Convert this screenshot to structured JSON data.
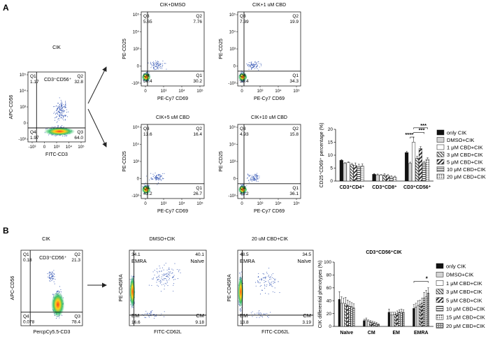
{
  "panels": [
    {
      "letter": "A"
    },
    {
      "letter": "B"
    }
  ],
  "flow_plots": [
    {
      "id": "a_cik",
      "title": "CIK",
      "ylabel": "APC-CD56",
      "xlabel": "FITC-CD3",
      "gate": "CD3⁺CD56⁺",
      "yticks": [
        "10⁵",
        "10⁴",
        "10³",
        "0",
        "-10³"
      ],
      "xticks": [
        "-10³",
        "0",
        "10³",
        "10⁴",
        "10⁵"
      ],
      "quads": {
        "Q1": {
          "name": "Q1",
          "val": "1.17"
        },
        "Q2": {
          "name": "Q2",
          "val": "32.8"
        },
        "Q3": {
          "name": "Q3",
          "val": "64.0"
        },
        "Q4": {
          "name": "Q4",
          "val": "1.97"
        }
      }
    },
    {
      "id": "a_dmso",
      "title": "CIK+DMSO",
      "ylabel": "PE-CD25",
      "xlabel": "PE-Cy7 CD69",
      "yticks": [
        "10⁵",
        "10⁴",
        "10³",
        "0",
        "-10³"
      ],
      "xticks": [
        "0",
        "10³",
        "10⁴",
        "10⁵"
      ],
      "quads": {
        "Q1": {
          "name": "Q3",
          "val": "5.65"
        },
        "Q2": {
          "name": "Q2",
          "val": "7.76"
        },
        "Q3": {
          "name": "Q1",
          "val": "30.2"
        },
        "Q4": {
          "name": "Q4",
          "val": "56.4"
        }
      }
    },
    {
      "id": "a_1um",
      "title": "CIK+1 uM CBD",
      "ylabel": "PE-CD25",
      "xlabel": "PE-Cy7 CD69",
      "yticks": [
        "10⁵",
        "10⁴",
        "10³",
        "0",
        "-10³"
      ],
      "xticks": [
        "0",
        "10³",
        "10⁴",
        "10⁵"
      ],
      "quads": {
        "Q1": {
          "name": "Q3",
          "val": "7.39"
        },
        "Q2": {
          "name": "Q2",
          "val": "19.9"
        },
        "Q3": {
          "name": "Q1",
          "val": "34.3"
        },
        "Q4": {
          "name": "Q4",
          "val": "38.4"
        }
      }
    },
    {
      "id": "a_5um",
      "title": "CIK+5 uM CBD",
      "ylabel": "PE-CD25",
      "xlabel": "PE-Cy7 CD69",
      "yticks": [
        "10⁵",
        "10⁴",
        "10³",
        "0",
        "-10³"
      ],
      "xticks": [
        "0",
        "10³",
        "10⁴",
        "10⁵"
      ],
      "quads": {
        "Q1": {
          "name": "Q3",
          "val": "13.6"
        },
        "Q2": {
          "name": "Q2",
          "val": "16.4"
        },
        "Q3": {
          "name": "Q1",
          "val": "26.7"
        },
        "Q4": {
          "name": "Q4",
          "val": "43.2"
        }
      }
    },
    {
      "id": "a_10um",
      "title": "CIK+10 uM CBD",
      "ylabel": "PE-CD25",
      "xlabel": "PE-Cy7 CD69",
      "yticks": [
        "10⁵",
        "10⁴",
        "10³",
        "0",
        "-10³"
      ],
      "xticks": [
        "0",
        "10³",
        "10⁴",
        "10⁵"
      ],
      "quads": {
        "Q1": {
          "name": "Q3",
          "val": "4.93"
        },
        "Q2": {
          "name": "Q2",
          "val": "15.8"
        },
        "Q3": {
          "name": "Q1",
          "val": "36.1"
        },
        "Q4": {
          "name": "Q4",
          "val": "43.2"
        }
      }
    },
    {
      "id": "b_cik",
      "title": "CIK",
      "ylabel": "APC-CD56",
      "xlabel": "PercpCy5.5-CD3",
      "gate": "CD3⁺CD56⁺",
      "yticks": [],
      "xticks": [],
      "quads": {
        "Q1": {
          "name": "Q1",
          "val": "0.18"
        },
        "Q2": {
          "name": "Q2",
          "val": "21.3"
        },
        "Q3": {
          "name": "Q3",
          "val": "78.4"
        },
        "Q4": {
          "name": "Q4",
          "val": "0.078"
        }
      }
    },
    {
      "id": "b_dmso",
      "title": "DMSO+CIK",
      "ylabel": "PE-CD45RA",
      "xlabel": "FITC-CD62L",
      "yticks": [],
      "xticks": [],
      "quads": {
        "Q1": {
          "name": "EMRA",
          "val": "34.1"
        },
        "Q2": {
          "name": "Naïve",
          "val": "40.1"
        },
        "Q3": {
          "name": "CM",
          "val": "9.18"
        },
        "Q4": {
          "name": "EM",
          "val": "16.6"
        }
      }
    },
    {
      "id": "b_20um",
      "title": "20 uM CBD+CIK",
      "ylabel": "PE-CD45RA",
      "xlabel": "FITC-CD62L",
      "yticks": [],
      "xticks": [],
      "quads": {
        "Q1": {
          "name": "EMRA",
          "val": "48.5"
        },
        "Q2": {
          "name": "Naïve",
          "val": "34.5"
        },
        "Q3": {
          "name": "CM",
          "val": "3.19"
        },
        "Q4": {
          "name": "EM",
          "val": "13.8"
        }
      }
    }
  ],
  "chart_data": [
    {
      "type": "bar",
      "title": "",
      "ylabel": "CD25⁺CD69⁺ percentage (%)",
      "ylim": [
        0,
        20
      ],
      "yticks": [
        "0",
        "5",
        "10",
        "15",
        "20"
      ],
      "categories": [
        "CD3⁺CD4⁺",
        "CD3⁺CD8⁺",
        "CD3⁺CD56⁺"
      ],
      "series": [
        {
          "name": "only CIK",
          "values": [
            8.0,
            2.6,
            11.0
          ],
          "errors": [
            0.3,
            0.3,
            0.5
          ]
        },
        {
          "name": "DMSO+CIK",
          "values": [
            6.8,
            2.4,
            6.8
          ],
          "errors": [
            0.3,
            0.3,
            0.5
          ]
        },
        {
          "name": "1 μM CBD+CIK",
          "values": [
            7.1,
            2.2,
            15.0
          ],
          "errors": [
            0.3,
            0.3,
            2.0
          ]
        },
        {
          "name": "3 μM CBD+CIK",
          "values": [
            6.3,
            2.3,
            8.8
          ],
          "errors": [
            0.5,
            0.5,
            0.8
          ]
        },
        {
          "name": "5 μM CBD+CIK",
          "values": [
            6.0,
            2.1,
            12.5
          ],
          "errors": [
            1.0,
            0.4,
            0.8
          ]
        },
        {
          "name": "10 μM CBD+CIK",
          "values": [
            5.5,
            1.6,
            7.1
          ],
          "errors": [
            1.0,
            0.4,
            0.5
          ]
        },
        {
          "name": "20 μM CBD+CIK",
          "values": [
            5.8,
            1.5,
            8.4
          ],
          "errors": [
            0.8,
            0.4,
            0.6
          ]
        }
      ],
      "significance": [
        "***",
        "***",
        "****"
      ],
      "legend": "right"
    },
    {
      "type": "bar",
      "title": "CD3⁺CD56⁺CIK",
      "ylabel": "CIK differential phenotypes (%)",
      "ylim": [
        0,
        100
      ],
      "yticks": [
        "0",
        "20",
        "40",
        "60",
        "80",
        "100"
      ],
      "categories": [
        "Naïve",
        "CM",
        "EM",
        "EMRA"
      ],
      "series": [
        {
          "name": "only CIK",
          "values": [
            42,
            9,
            22,
            28
          ],
          "errors": [
            12,
            2,
            5,
            6
          ]
        },
        {
          "name": "DMSO+CIK",
          "values": [
            36,
            10,
            18,
            30
          ],
          "errors": [
            10,
            3,
            4,
            6
          ]
        },
        {
          "name": "1 μM CBD+CIK",
          "values": [
            36,
            8,
            18,
            32
          ],
          "errors": [
            8,
            2,
            4,
            8
          ]
        },
        {
          "name": "3 μM CBD+CIK",
          "values": [
            35,
            7,
            19,
            34
          ],
          "errors": [
            10,
            2,
            3,
            7
          ]
        },
        {
          "name": "5 μM CBD+CIK",
          "values": [
            33,
            6,
            20,
            36
          ],
          "errors": [
            8,
            2,
            4,
            8
          ]
        },
        {
          "name": "10 μM CBD+CIK",
          "values": [
            31,
            5,
            22,
            44
          ],
          "errors": [
            8,
            2,
            4,
            9
          ]
        },
        {
          "name": "15 μM CBD+CIK",
          "values": [
            31,
            4,
            22,
            46
          ],
          "errors": [
            6,
            2,
            5,
            10
          ]
        },
        {
          "name": "20 μM CBD+CIK",
          "values": [
            29,
            3,
            22,
            52
          ],
          "errors": [
            6,
            1,
            4,
            8
          ]
        }
      ],
      "significance": [
        "*"
      ],
      "legend": "right"
    }
  ]
}
